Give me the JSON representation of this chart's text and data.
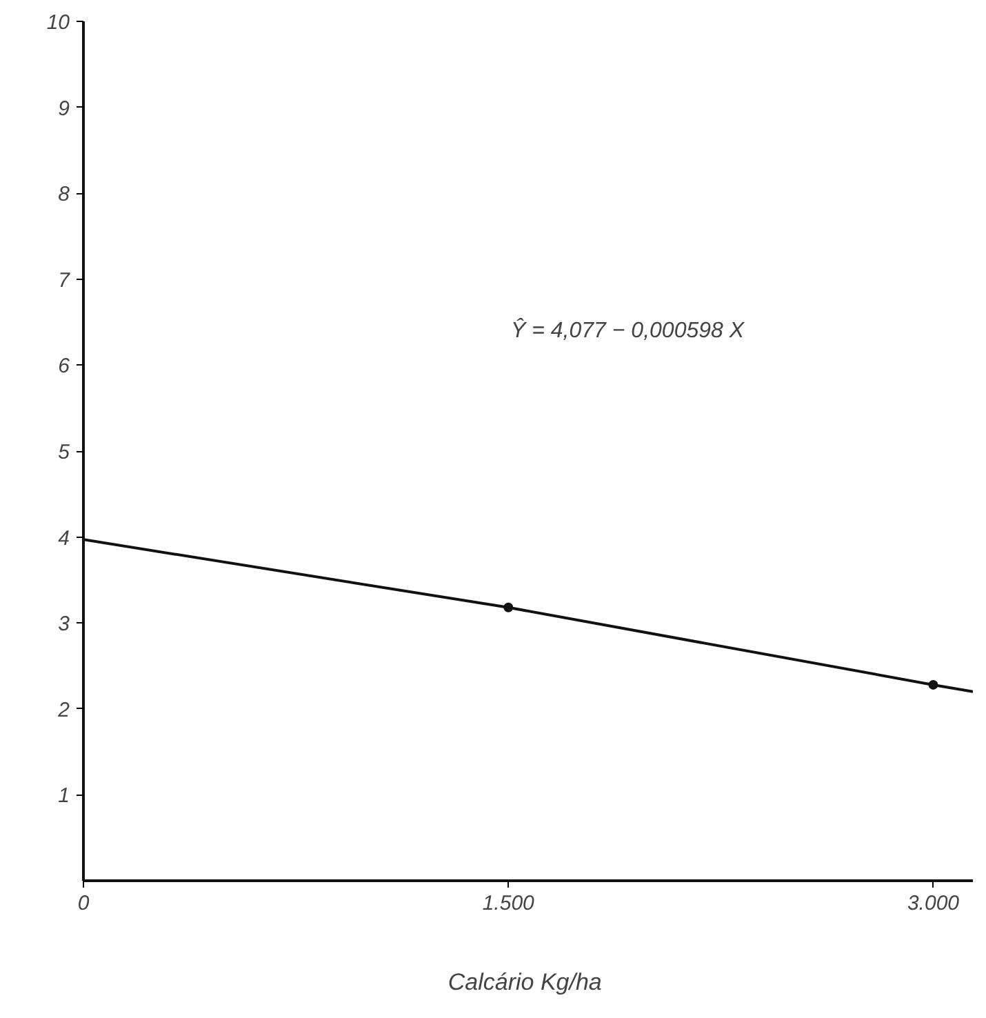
{
  "chart_data": {
    "type": "line",
    "xlabel": "Calcário  Kg/ha",
    "xlim": [
      0,
      3.14
    ],
    "ylim": [
      0,
      10
    ],
    "xticks": [
      {
        "value": 0,
        "label": "0"
      },
      {
        "value": 1.5,
        "label": "1.500"
      },
      {
        "value": 3,
        "label": "3.000"
      }
    ],
    "yticks": [
      1,
      2,
      3,
      4,
      5,
      6,
      7,
      8,
      9,
      10
    ],
    "grid": false,
    "series": [
      {
        "color": "#111111",
        "x": [
          0,
          1.5,
          3,
          3.14
        ],
        "values": [
          3.97,
          3.18,
          2.28,
          2.2
        ],
        "marker": "none"
      },
      {
        "type": "scatter",
        "color": "#111111",
        "x": [
          1.5,
          3
        ],
        "values": [
          3.18,
          2.28
        ],
        "marker": "circle"
      }
    ],
    "annotations": [
      "Ŷ = 4,077 − 0,000598 X"
    ]
  }
}
